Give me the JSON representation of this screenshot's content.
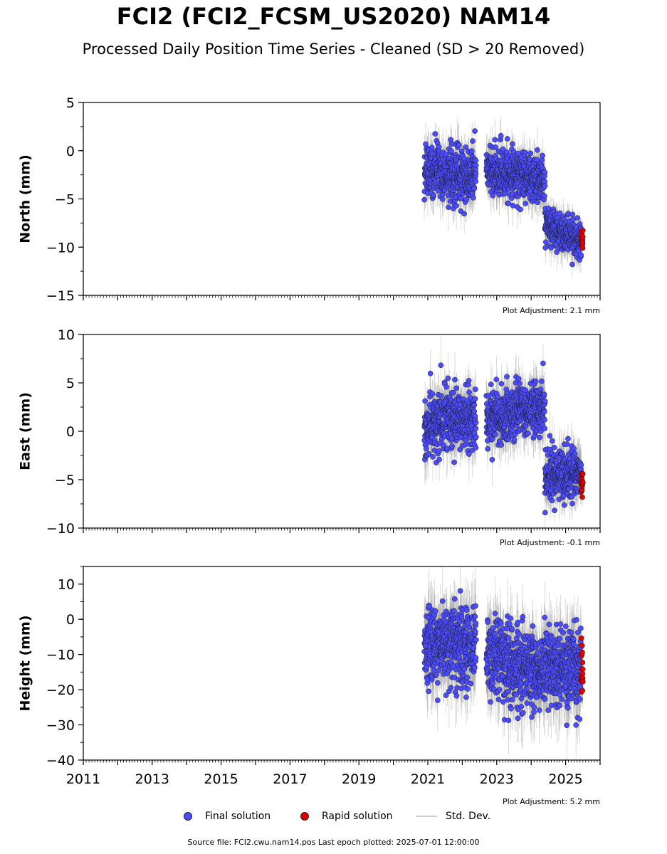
{
  "header": {
    "title": "FCI2 (FCI2_FCSM_US2020) NAM14",
    "subtitle": "Processed Daily Position Time Series - Cleaned (SD > 20 Removed)"
  },
  "legend": {
    "final_label": "Final solution",
    "rapid_label": "Rapid solution",
    "stddev_label": "Std. Dev."
  },
  "footer": {
    "text": "Source file: FCI2.cwu.nam14.pos  Last epoch plotted: 2025-07-01 12:00:00"
  },
  "colors": {
    "final": "#4b4bff",
    "rapid": "#e00000",
    "stddev": "#999999"
  },
  "chart_data": [
    {
      "type": "scatter",
      "ylabel": "North (mm)",
      "xlim": [
        2011,
        2026
      ],
      "ylim": [
        -15,
        5
      ],
      "yticks": [
        "5",
        "0",
        "−5",
        "−10",
        "−15"
      ],
      "ytick_values": [
        5,
        0,
        -5,
        -10,
        -15
      ],
      "annotation": "Plot Adjustment: 2.1 mm",
      "series": [
        {
          "name": "Final solution",
          "segments": [
            {
              "start": 2020.9,
              "end": 2022.4,
              "trend": [
                [
                  2020.9,
                  -1.5
                ],
                [
                  2021.5,
                  -2.5
                ],
                [
                  2022.4,
                  -2.5
                ]
              ],
              "noise": 1.3
            },
            {
              "start": 2022.7,
              "end": 2024.4,
              "trend": [
                [
                  2022.7,
                  -2.0
                ],
                [
                  2023.5,
                  -2.5
                ],
                [
                  2024.4,
                  -3.0
                ]
              ],
              "noise": 1.2
            },
            {
              "start": 2024.4,
              "end": 2025.45,
              "trend": [
                [
                  2024.4,
                  -7.5
                ],
                [
                  2025.45,
                  -9.5
                ]
              ],
              "noise": 1.0
            }
          ]
        },
        {
          "name": "Rapid solution",
          "segments": [
            {
              "start": 2025.45,
              "end": 2025.5,
              "trend": [
                [
                  2025.45,
                  -9.3
                ],
                [
                  2025.5,
                  -9.3
                ]
              ],
              "noise": 0.5
            }
          ]
        }
      ]
    },
    {
      "type": "scatter",
      "ylabel": "East (mm)",
      "xlim": [
        2011,
        2026
      ],
      "ylim": [
        -10,
        10
      ],
      "yticks": [
        "10",
        "5",
        "0",
        "−5",
        "−10"
      ],
      "ytick_values": [
        10,
        5,
        0,
        -5,
        -10
      ],
      "annotation": "Plot Adjustment: -0.1 mm",
      "series": [
        {
          "name": "Final solution",
          "segments": [
            {
              "start": 2020.9,
              "end": 2022.4,
              "trend": [
                [
                  2020.9,
                  -0.5
                ],
                [
                  2021.5,
                  1.5
                ],
                [
                  2022.4,
                  1.0
                ]
              ],
              "noise": 1.5
            },
            {
              "start": 2022.7,
              "end": 2024.4,
              "trend": [
                [
                  2022.7,
                  1.0
                ],
                [
                  2023.5,
                  2.0
                ],
                [
                  2024.4,
                  2.5
                ]
              ],
              "noise": 1.4
            },
            {
              "start": 2024.4,
              "end": 2025.45,
              "trend": [
                [
                  2024.4,
                  -4.5
                ],
                [
                  2025.45,
                  -4.5
                ]
              ],
              "noise": 1.3
            }
          ]
        },
        {
          "name": "Rapid solution",
          "segments": [
            {
              "start": 2025.45,
              "end": 2025.5,
              "trend": [
                [
                  2025.45,
                  -4.8
                ],
                [
                  2025.5,
                  -4.8
                ]
              ],
              "noise": 0.8
            }
          ]
        }
      ]
    },
    {
      "type": "scatter",
      "ylabel": "Height (mm)",
      "xlim": [
        2011,
        2026
      ],
      "ylim": [
        -40,
        15
      ],
      "yticks": [
        "10",
        "0",
        "−10",
        "−20",
        "−30",
        "−40"
      ],
      "ytick_values": [
        10,
        0,
        -10,
        -20,
        -30,
        -40
      ],
      "xticks": [
        "2011",
        "2013",
        "2015",
        "2017",
        "2019",
        "2021",
        "2023",
        "2025"
      ],
      "xtick_values": [
        2011,
        2013,
        2015,
        2017,
        2019,
        2021,
        2023,
        2025
      ],
      "annotation": "Plot Adjustment: 5.2 mm",
      "series": [
        {
          "name": "Final solution",
          "segments": [
            {
              "start": 2020.9,
              "end": 2022.4,
              "trend": [
                [
                  2020.9,
                  -7.0
                ],
                [
                  2022.4,
                  -8.0
                ]
              ],
              "noise": 5.5
            },
            {
              "start": 2022.7,
              "end": 2025.45,
              "trend": [
                [
                  2022.7,
                  -10.0
                ],
                [
                  2024.0,
                  -14.0
                ],
                [
                  2025.45,
                  -14.0
                ]
              ],
              "noise": 5.5
            }
          ]
        },
        {
          "name": "Rapid solution",
          "segments": [
            {
              "start": 2025.45,
              "end": 2025.5,
              "trend": [
                [
                  2025.45,
                  -15.0
                ],
                [
                  2025.5,
                  -15.0
                ]
              ],
              "noise": 3.5
            }
          ]
        }
      ]
    }
  ]
}
